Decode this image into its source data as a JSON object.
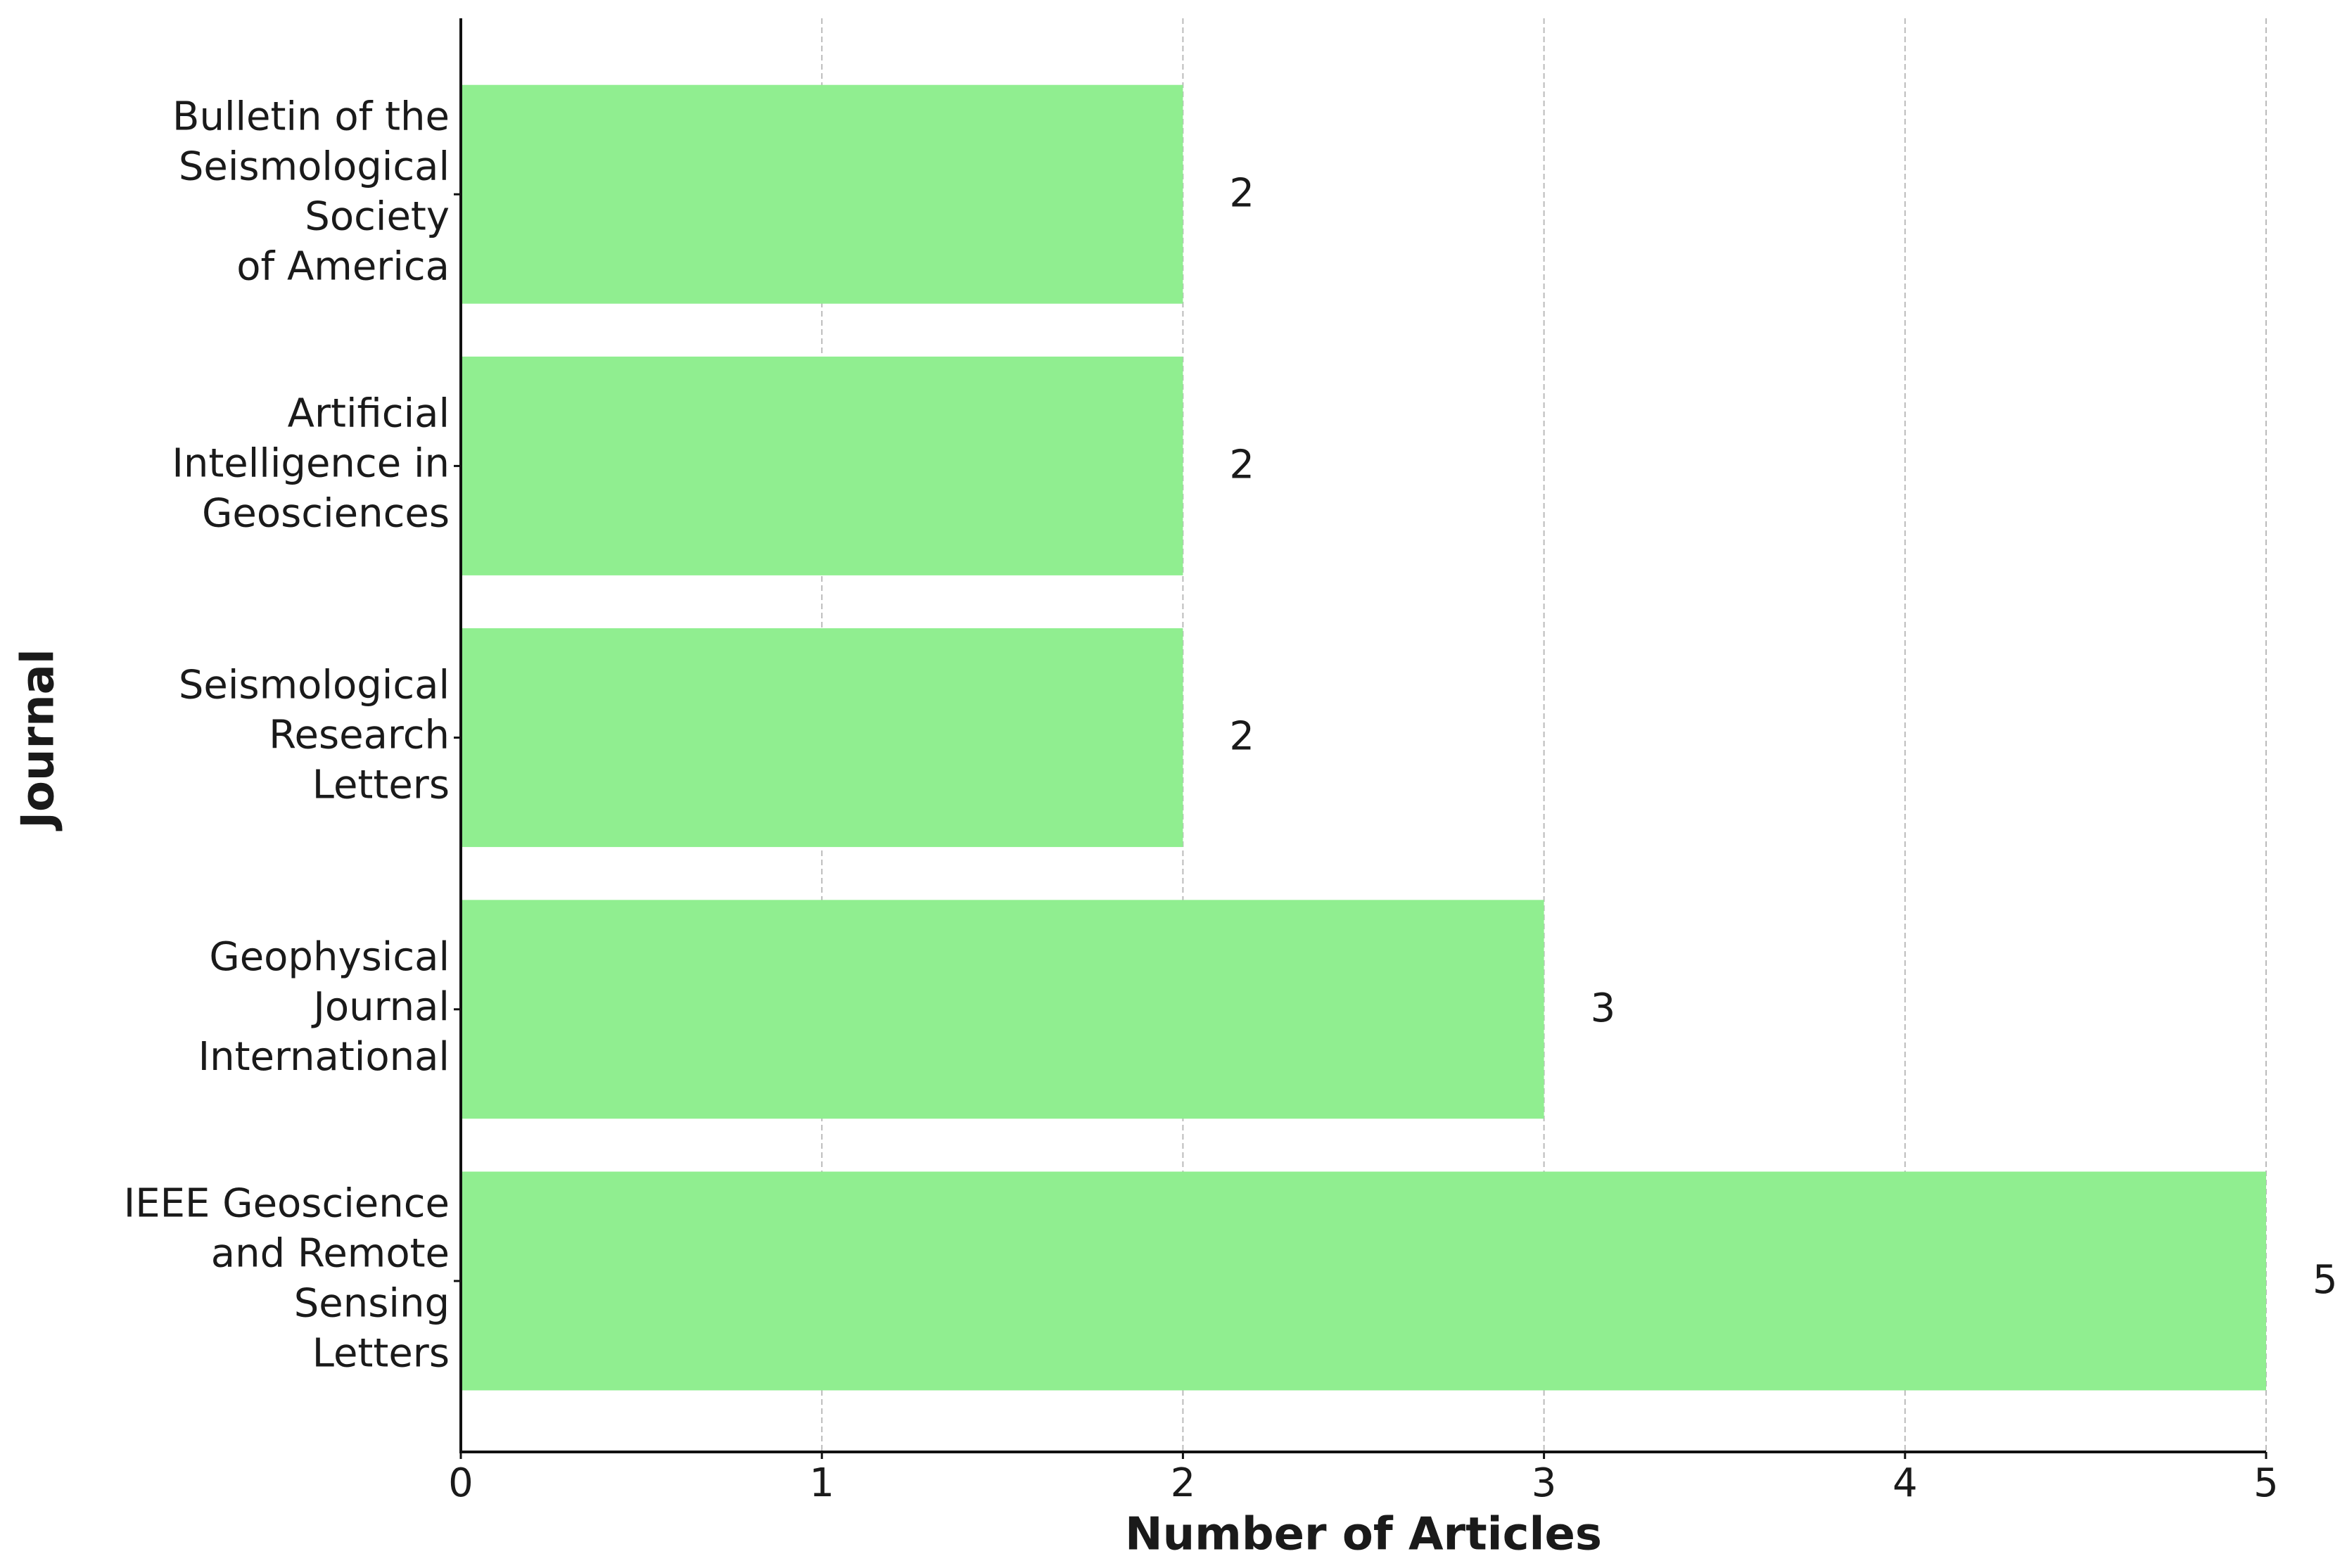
{
  "chart_data": {
    "type": "barh",
    "categories": [
      "IEEE Geoscience\nand Remote\nSensing\nLetters",
      "Geophysical\nJournal\nInternational",
      "Seismological\nResearch\nLetters",
      "Artificial\nIntelligence in\nGeosciences",
      "Bulletin of the\nSeismological\nSociety\nof America"
    ],
    "values": [
      5,
      3,
      2,
      2,
      2
    ],
    "color": "#90ee90",
    "xlabel": "Number of Articles",
    "ylabel": "Journal",
    "xlim": [
      0,
      5
    ],
    "xticks": [
      0,
      1,
      2,
      3,
      4,
      5
    ],
    "grid": true
  }
}
